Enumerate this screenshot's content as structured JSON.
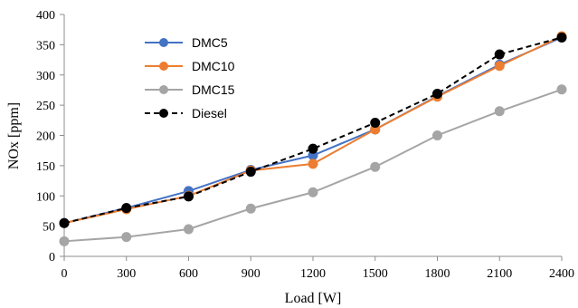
{
  "chart_data": {
    "type": "line",
    "xlabel": "Load [W]",
    "ylabel": "NOx [ppm]",
    "x": [
      0,
      300,
      600,
      900,
      1200,
      1500,
      1800,
      2100,
      2400
    ],
    "xlim": [
      0,
      2400
    ],
    "ylim": [
      0,
      400
    ],
    "yticks": [
      0,
      50,
      100,
      150,
      200,
      250,
      300,
      350,
      400
    ],
    "grid": false,
    "legend_position": "top-left",
    "series": [
      {
        "name": "DMC5",
        "color": "#4472C4",
        "dash": "solid",
        "values": [
          55,
          80,
          108,
          143,
          167,
          210,
          265,
          317,
          362
        ]
      },
      {
        "name": "DMC10",
        "color": "#ED7D31",
        "dash": "solid",
        "values": [
          55,
          78,
          100,
          142,
          153,
          210,
          264,
          315,
          364
        ]
      },
      {
        "name": "DMC15",
        "color": "#A5A5A5",
        "dash": "solid",
        "values": [
          25,
          32,
          45,
          79,
          106,
          148,
          200,
          240,
          276
        ]
      },
      {
        "name": "Diesel",
        "color": "#000000",
        "dash": "dashed",
        "values": [
          55,
          80,
          99,
          140,
          178,
          221,
          269,
          334,
          362
        ]
      }
    ]
  }
}
